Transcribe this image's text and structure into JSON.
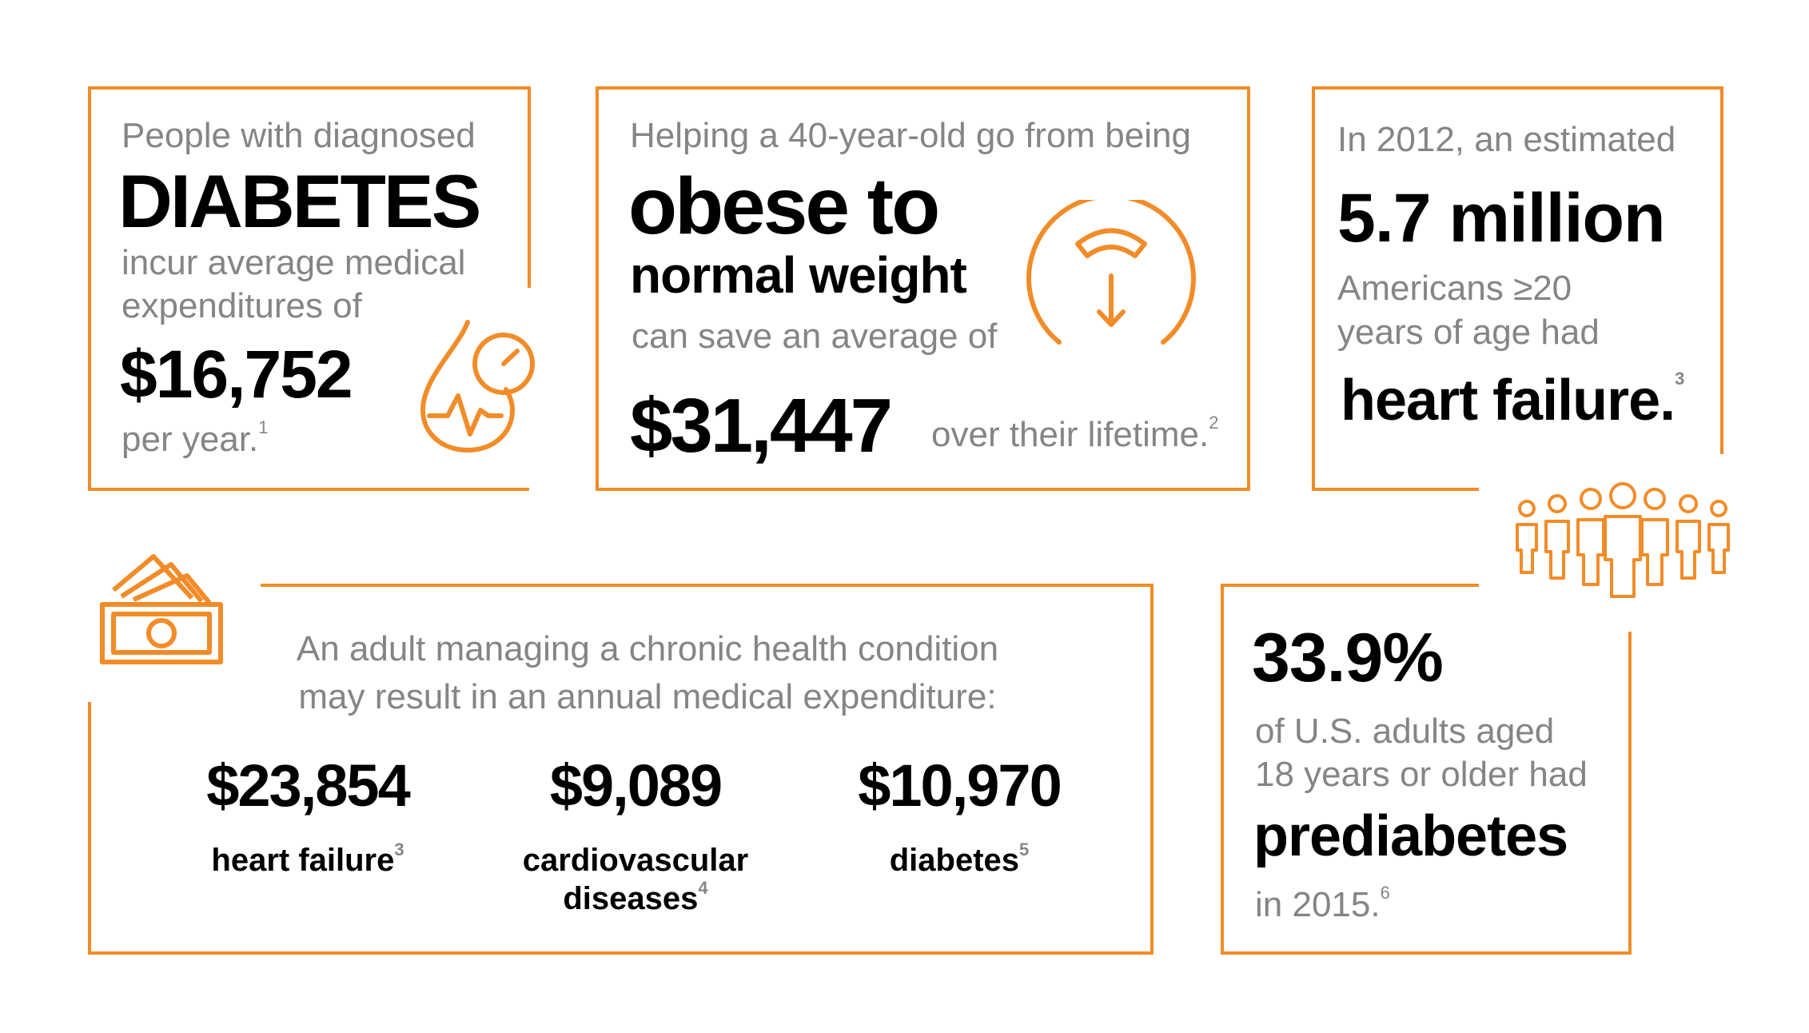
{
  "colors": {
    "accent": "#F28C28",
    "body_gray": "#858585",
    "text": "#000000"
  },
  "card1": {
    "intro": "People with diagnosed",
    "headline": "DIABETES",
    "line1": "incur average medical",
    "line2": "expenditures of",
    "amount": "$16,752",
    "suffix": "per year.",
    "sup": "1",
    "icon": "blood-drop-gauge-icon"
  },
  "card2": {
    "intro": "Helping a 40-year-old go from being",
    "headline1": "obese to",
    "headline2": "normal weight",
    "line": "can save an average of",
    "amount": "$31,447",
    "suffix": "over their lifetime.",
    "sup": "2",
    "icon": "scale-gauge-icon"
  },
  "card3": {
    "intro": "In 2012, an estimated",
    "amount": "5.7 million",
    "line1": "Americans ≥20",
    "line2": "years of age had",
    "headline": "heart failure.",
    "sup": "3",
    "icon": "people-group-icon"
  },
  "card4": {
    "line1": "An adult managing a chronic health condition",
    "line2": "may result in an annual medical expenditure:",
    "icon": "money-stack-icon",
    "stats": [
      {
        "amount": "$23,854",
        "label": "heart failure",
        "label2": "",
        "sup": "3"
      },
      {
        "amount": "$9,089",
        "label": "cardiovascular",
        "label2": "diseases",
        "sup": "4"
      },
      {
        "amount": "$10,970",
        "label": "diabetes",
        "label2": "",
        "sup": "5"
      }
    ]
  },
  "card5": {
    "amount": "33.9%",
    "line1": "of U.S. adults aged",
    "line2": "18 years or older had",
    "headline": "prediabetes",
    "suffix": "in 2015.",
    "sup": "6"
  }
}
